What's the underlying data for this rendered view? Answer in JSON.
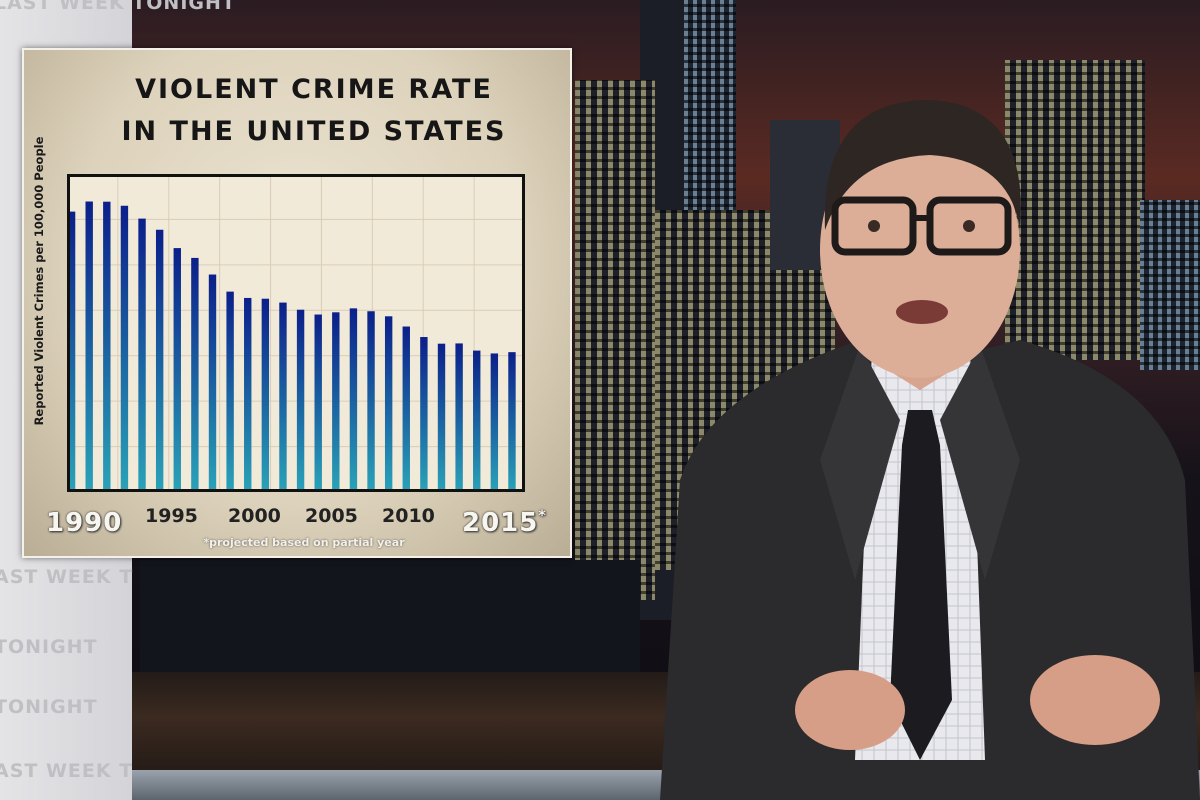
{
  "background": {
    "wall_words": [
      "LAST WEEK TONIGHT",
      "AST WEEK T",
      "TONIGHT",
      "TONIGHT",
      "AST WEEK T"
    ]
  },
  "chart_data": {
    "type": "bar",
    "title_line1": "VIOLENT CRIME RATE",
    "title_line2": "IN THE UNITED STATES",
    "ylabel": "Reported Violent Crimes per 100,000 People",
    "xlabel": "",
    "categories": [
      1990,
      1991,
      1992,
      1993,
      1994,
      1995,
      1996,
      1997,
      1998,
      1999,
      2000,
      2001,
      2002,
      2003,
      2004,
      2005,
      2006,
      2007,
      2008,
      2009,
      2010,
      2011,
      2012,
      2013,
      2014,
      2015
    ],
    "values": [
      731.8,
      758.2,
      757.7,
      747.1,
      713.6,
      684.5,
      636.6,
      611.0,
      567.6,
      523.0,
      506.5,
      504.5,
      494.4,
      475.8,
      463.2,
      469.0,
      479.3,
      471.8,
      458.6,
      431.9,
      404.5,
      387.1,
      387.8,
      369.1,
      361.6,
      365.0
    ],
    "ylim": [
      0,
      830
    ],
    "tick_labels": [
      "1990",
      "1995",
      "2000",
      "2005",
      "2010",
      "2015"
    ],
    "tick_marker": "*",
    "footnote": "*projected based on partial year",
    "grid": true,
    "colors": {
      "bar_top": "#0b1f8a",
      "bar_bottom": "#2aa3b8",
      "plot_bg": "#f2ead9",
      "grid": "#d8cdb6"
    }
  }
}
